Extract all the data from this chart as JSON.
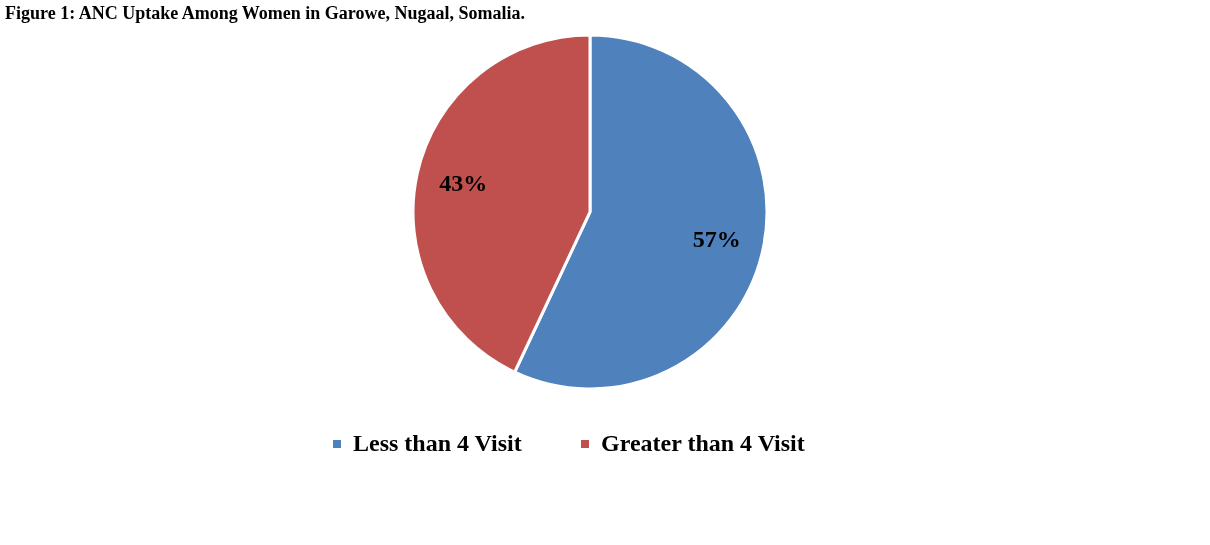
{
  "chart_data": {
    "type": "pie",
    "title": "Figure 1: ANC Uptake Among Women in Garowe, Nugaal, Somalia.",
    "categories": [
      "Less than 4 Visit",
      "Greater than 4 Visit"
    ],
    "values": [
      57,
      43
    ],
    "colors": [
      "#4f81bd",
      "#c0504d"
    ],
    "value_labels": [
      "57%",
      "43%"
    ],
    "legend": "bottom"
  }
}
